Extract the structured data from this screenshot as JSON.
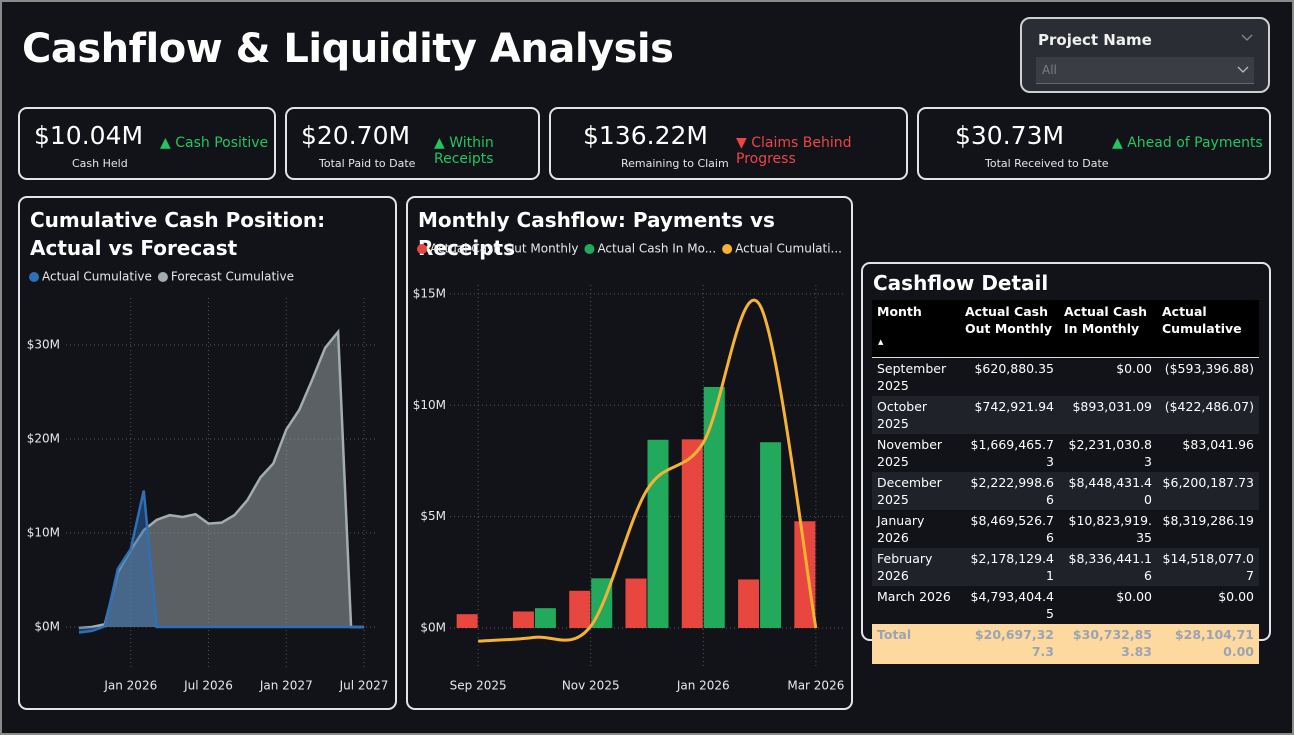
{
  "title": "Cashflow & Liquidity Analysis",
  "slicer": {
    "label": "Project Name",
    "value": "All"
  },
  "kpis": [
    {
      "value": "$10.04M",
      "label": "Cash Held",
      "status": "▲ Cash Positive",
      "color": "#22c55e"
    },
    {
      "value": "$20.70M",
      "label": "Total Paid to Date",
      "status": "▲ Within Receipts",
      "color": "#22c55e"
    },
    {
      "value": "$136.22M",
      "label": "Remaining to Claim",
      "status": "▼ Claims Behind Progress",
      "color": "#ef4444"
    },
    {
      "value": "$30.73M",
      "label": "Total Received to Date",
      "status": "▲ Ahead of Payments",
      "color": "#22c55e"
    }
  ],
  "chart_data": [
    {
      "type": "area",
      "title": "Cumulative Cash Position: Actual vs Forecast",
      "x": [
        "2025-09",
        "2025-10",
        "2025-11",
        "2025-12",
        "2026-01",
        "2026-02",
        "2026-03",
        "2026-04",
        "2026-05",
        "2026-06",
        "2026-07",
        "2026-08",
        "2026-09",
        "2026-10",
        "2026-11",
        "2026-12",
        "2027-01",
        "2027-02",
        "2027-03",
        "2027-04",
        "2027-05",
        "2027-06",
        "2027-07"
      ],
      "series": [
        {
          "name": "Forecast Cumulative",
          "color": "#a3adaf",
          "values": [
            -0.1,
            0,
            0.3,
            5.8,
            8.2,
            10.3,
            11.4,
            11.9,
            11.7,
            12.0,
            11.0,
            11.1,
            11.9,
            13.5,
            15.9,
            17.4,
            21.0,
            23.1,
            26.3,
            29.7,
            31.4,
            0,
            0
          ]
        },
        {
          "name": "Actual Cumulative",
          "color": "#2f6fb8",
          "values": [
            -0.59,
            -0.42,
            0.08,
            6.2,
            8.32,
            14.52,
            0,
            0,
            0,
            0,
            0,
            0,
            0,
            0,
            0,
            0,
            0,
            0,
            0,
            0,
            0,
            0,
            0
          ]
        }
      ],
      "legend_order": [
        1,
        0
      ],
      "xlim": [
        "2025-08",
        "2027-08"
      ],
      "xticks": [
        {
          "value": "2026-01",
          "label": "Jan 2026"
        },
        {
          "value": "2026-07",
          "label": "Jul 2026"
        },
        {
          "value": "2027-01",
          "label": "Jan 2027"
        },
        {
          "value": "2027-07",
          "label": "Jul 2027"
        }
      ],
      "ylim": [
        -1.5,
        35
      ],
      "yticks": [
        {
          "value": 0,
          "label": "$0M"
        },
        {
          "value": 10,
          "label": "$10M"
        },
        {
          "value": 20,
          "label": "$20M"
        },
        {
          "value": 30,
          "label": "$30M"
        }
      ],
      "grid": true
    },
    {
      "type": "combo",
      "title": "Monthly Cashflow: Payments vs Receipts",
      "categories": [
        "Sep 2025",
        null,
        "Nov 2025",
        null,
        "Jan 2026",
        null,
        "Mar 2026"
      ],
      "series": [
        {
          "name": "Actual Cash Out Monthly",
          "type": "bar",
          "color": "#e8473f",
          "values": [
            0.62,
            0.74,
            1.67,
            2.22,
            8.47,
            2.18,
            4.79
          ]
        },
        {
          "name": "Actual Cash In Mo...",
          "type": "bar",
          "color": "#22a95b",
          "values": [
            0,
            0.89,
            2.23,
            8.45,
            10.82,
            8.34,
            0
          ]
        },
        {
          "name": "Actual Cumulati...",
          "type": "line",
          "color": "#f5b234",
          "values": [
            -0.59,
            -0.42,
            0.08,
            6.2,
            8.32,
            14.52,
            0
          ]
        }
      ],
      "ylim": [
        -0.8,
        15.4
      ],
      "yticks": [
        {
          "value": 0,
          "label": "$0M"
        },
        {
          "value": 5,
          "label": "$5M"
        },
        {
          "value": 10,
          "label": "$10M"
        },
        {
          "value": 15,
          "label": "$15M"
        }
      ],
      "grid": true
    }
  ],
  "table": {
    "title": "Cashflow Detail",
    "columns": [
      "Month",
      "Actual Cash Out Monthly",
      "Actual Cash In Monthly",
      "Actual Cumulative"
    ],
    "rows": [
      [
        "September 2025",
        "$620,880.35",
        "$0.00",
        "($593,396.88)"
      ],
      [
        "October 2025",
        "$742,921.94",
        "$893,031.09",
        "($422,486.07)"
      ],
      [
        "November 2025",
        "$1,669,465.73",
        "$2,231,030.83",
        "$83,041.96"
      ],
      [
        "December 2025",
        "$2,222,998.66",
        "$8,448,431.40",
        "$6,200,187.73"
      ],
      [
        "January 2026",
        "$8,469,526.76",
        "$10,823,919.35",
        "$8,319,286.19"
      ],
      [
        "February 2026",
        "$2,178,129.41",
        "$8,336,441.16",
        "$14,518,077.07"
      ],
      [
        "March 2026",
        "$4,793,404.45",
        "$0.00",
        "$0.00"
      ]
    ],
    "total": [
      "Total",
      "$20,697,327.3",
      "$30,732,853.83",
      "$28,104,710.00"
    ]
  }
}
